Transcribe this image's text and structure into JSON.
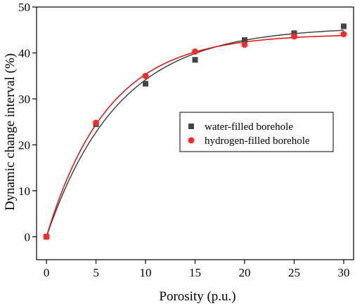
{
  "chart_data": {
    "type": "scatter",
    "title": "",
    "xlabel": "Porosity (p.u.)",
    "ylabel": "Dynamic change interval (%)",
    "xlim": [
      -1,
      31
    ],
    "ylim": [
      -5,
      50
    ],
    "xticks": [
      0,
      5,
      10,
      15,
      20,
      25,
      30
    ],
    "yticks": [
      0,
      10,
      20,
      30,
      40,
      50
    ],
    "grid": false,
    "legend_position": "center-right",
    "series": [
      {
        "name": "water-filled borehole",
        "marker": "square",
        "color": "#444444",
        "fit_color": "#444444",
        "x": [
          0,
          5,
          10,
          15,
          20,
          25,
          30
        ],
        "y": [
          0,
          24.5,
          33.3,
          38.5,
          42.8,
          44.3,
          45.8
        ]
      },
      {
        "name": "hydrogen-filled borehole",
        "marker": "circle",
        "color": "#ff2a2a",
        "fit_color": "#e01010",
        "x": [
          0,
          5,
          10,
          15,
          20,
          25,
          30
        ],
        "y": [
          0,
          24.8,
          35.0,
          40.3,
          41.8,
          43.6,
          44.1
        ]
      }
    ]
  }
}
